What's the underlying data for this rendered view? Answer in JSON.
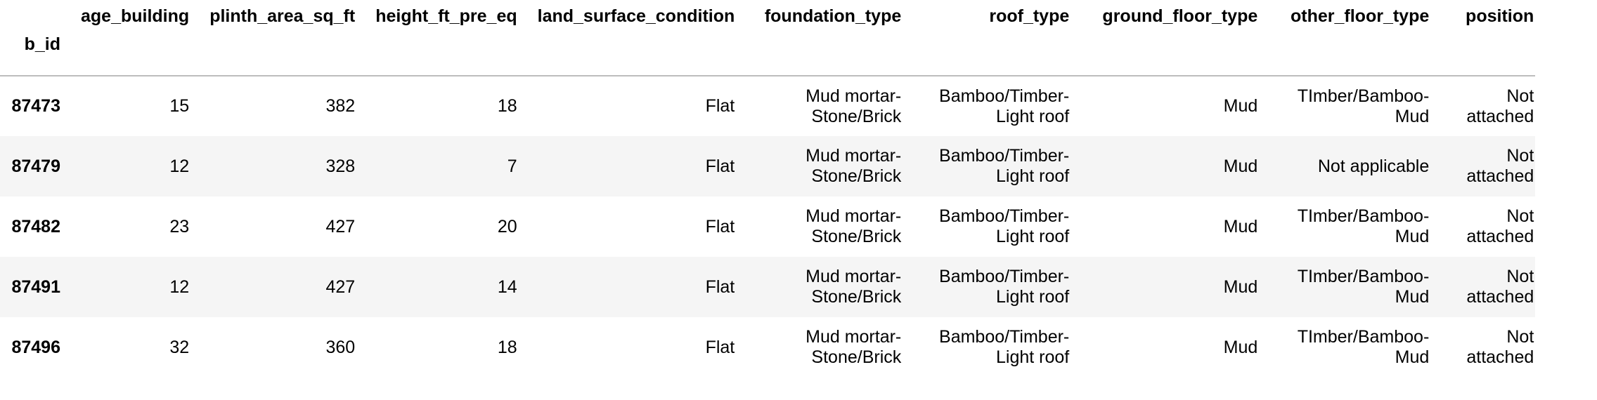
{
  "table": {
    "index_name": "b_id",
    "columns": [
      "age_building",
      "plinth_area_sq_ft",
      "height_ft_pre_eq",
      "land_surface_condition",
      "foundation_type",
      "roof_type",
      "ground_floor_type",
      "other_floor_type",
      "position"
    ],
    "rows": [
      {
        "b_id": "87473",
        "age_building": "15",
        "plinth_area_sq_ft": "382",
        "height_ft_pre_eq": "18",
        "land_surface_condition": "Flat",
        "foundation_type": "Mud mortar-Stone/Brick",
        "roof_type": "Bamboo/Timber-Light roof",
        "ground_floor_type": "Mud",
        "other_floor_type": "TImber/Bamboo-Mud",
        "position": "Not attached"
      },
      {
        "b_id": "87479",
        "age_building": "12",
        "plinth_area_sq_ft": "328",
        "height_ft_pre_eq": "7",
        "land_surface_condition": "Flat",
        "foundation_type": "Mud mortar-Stone/Brick",
        "roof_type": "Bamboo/Timber-Light roof",
        "ground_floor_type": "Mud",
        "other_floor_type": "Not applicable",
        "position": "Not attached"
      },
      {
        "b_id": "87482",
        "age_building": "23",
        "plinth_area_sq_ft": "427",
        "height_ft_pre_eq": "20",
        "land_surface_condition": "Flat",
        "foundation_type": "Mud mortar-Stone/Brick",
        "roof_type": "Bamboo/Timber-Light roof",
        "ground_floor_type": "Mud",
        "other_floor_type": "TImber/Bamboo-Mud",
        "position": "Not attached"
      },
      {
        "b_id": "87491",
        "age_building": "12",
        "plinth_area_sq_ft": "427",
        "height_ft_pre_eq": "14",
        "land_surface_condition": "Flat",
        "foundation_type": "Mud mortar-Stone/Brick",
        "roof_type": "Bamboo/Timber-Light roof",
        "ground_floor_type": "Mud",
        "other_floor_type": "TImber/Bamboo-Mud",
        "position": "Not attached"
      },
      {
        "b_id": "87496",
        "age_building": "32",
        "plinth_area_sq_ft": "360",
        "height_ft_pre_eq": "18",
        "land_surface_condition": "Flat",
        "foundation_type": "Mud mortar-Stone/Brick",
        "roof_type": "Bamboo/Timber-Light roof",
        "ground_floor_type": "Mud",
        "other_floor_type": "TImber/Bamboo-Mud",
        "position": "Not attached"
      }
    ]
  },
  "colors": {
    "background": "#ffffff",
    "stripe": "#f5f5f5",
    "header_rule": "#bdbdbd",
    "text": "#000000"
  }
}
